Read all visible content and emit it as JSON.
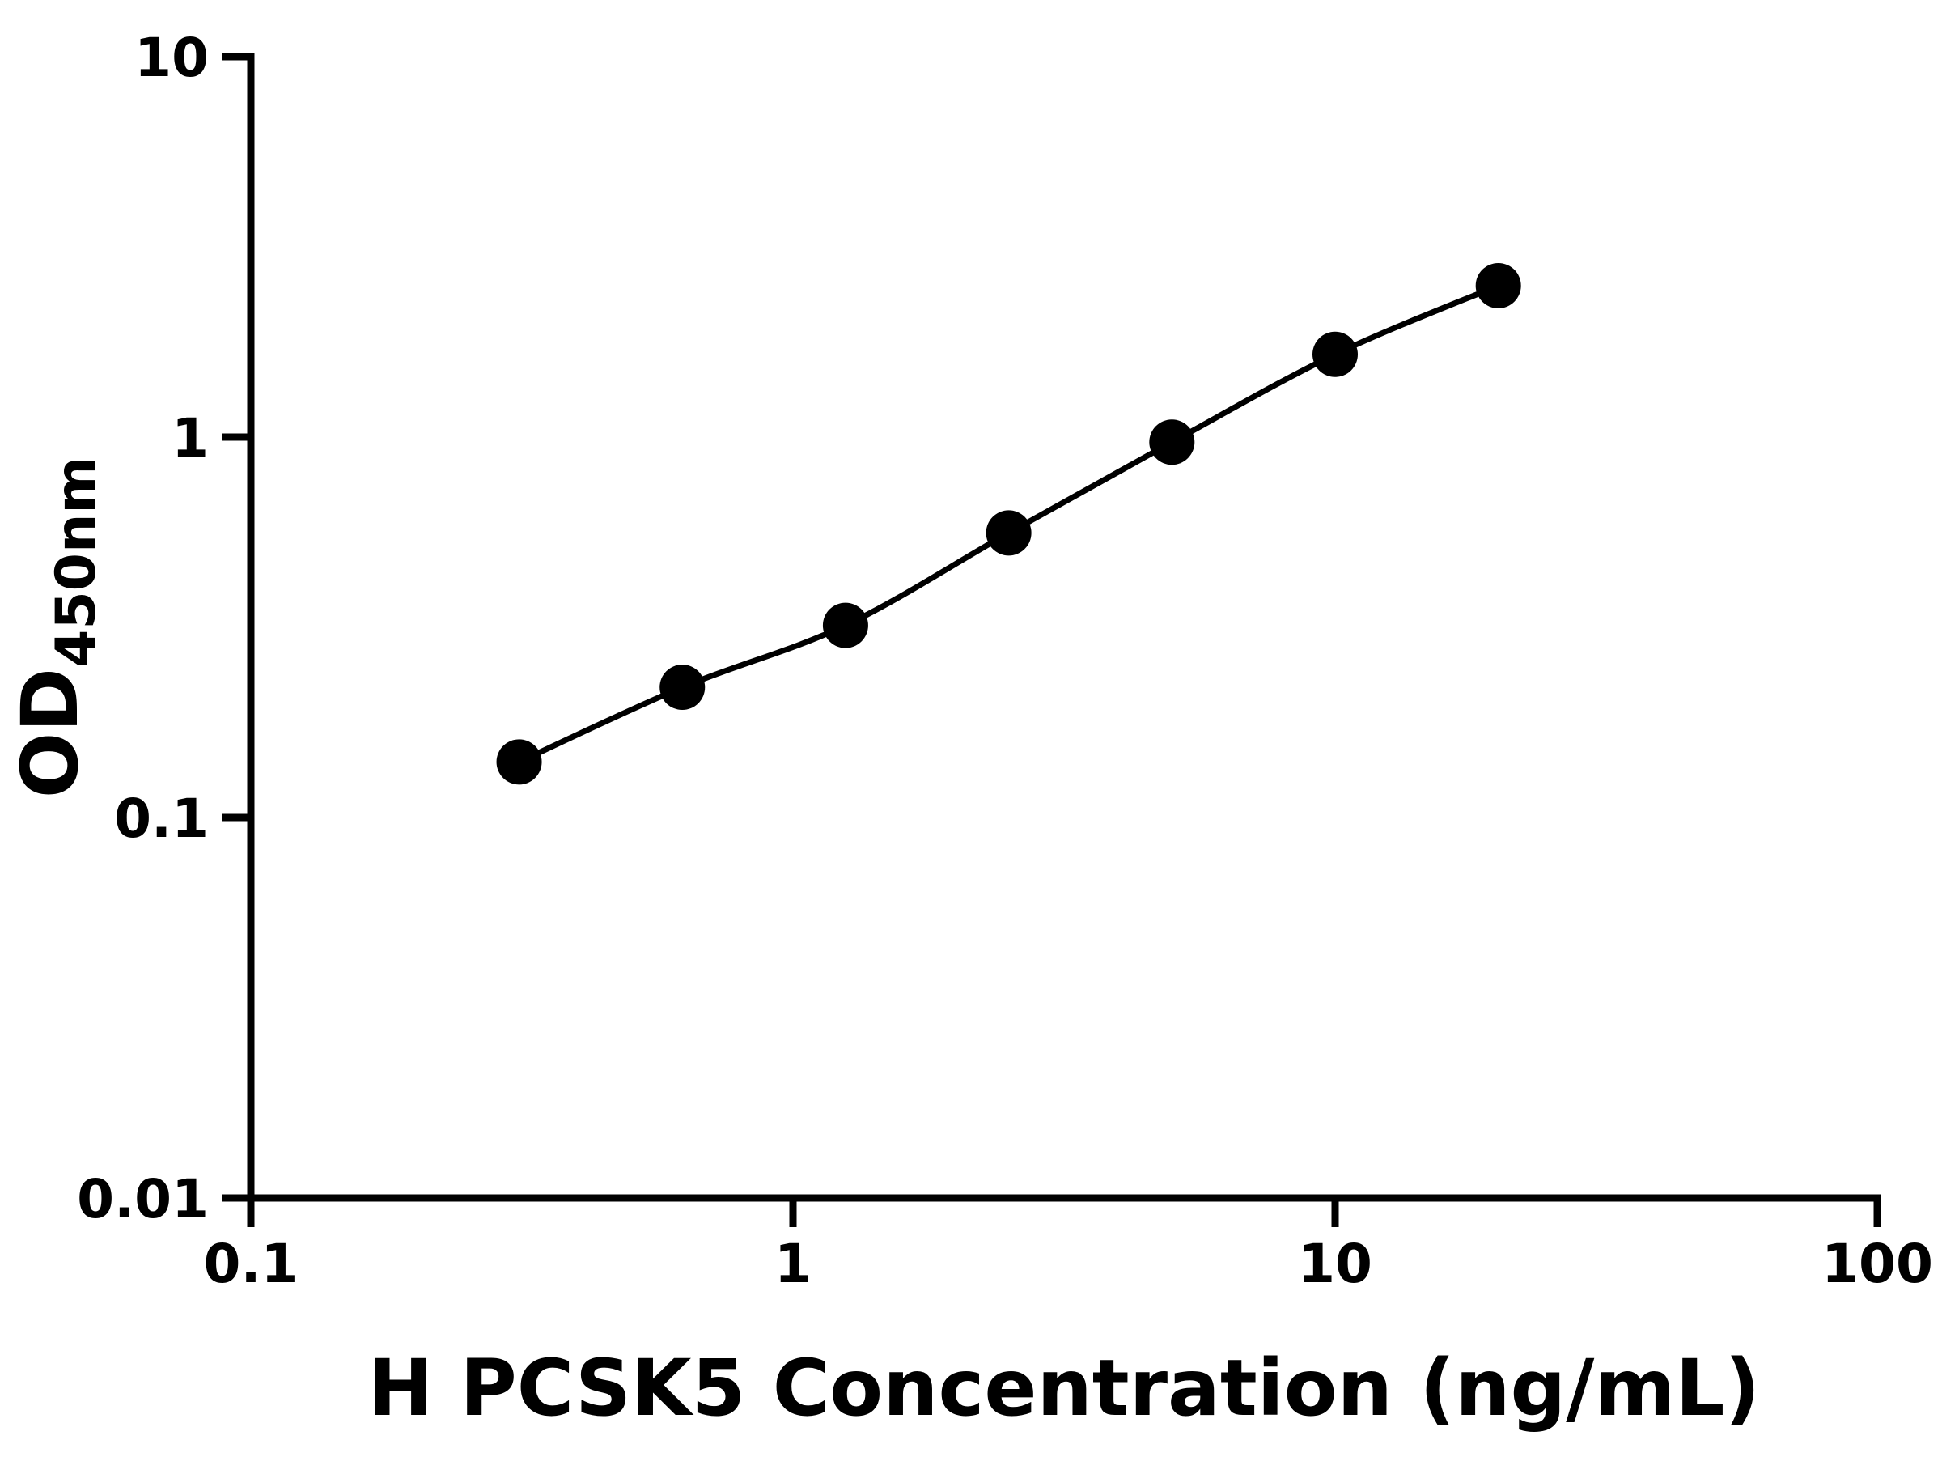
{
  "chart_data": {
    "type": "line",
    "title": "",
    "xlabel": "H PCSK5 Concentration (ng/mL)",
    "ylabel_main": "OD",
    "ylabel_sub": "450nm",
    "xscale": "log",
    "yscale": "log",
    "xlim": [
      0.1,
      100
    ],
    "ylim": [
      0.01,
      10
    ],
    "x": [
      0.3125,
      0.625,
      1.25,
      2.5,
      5,
      10,
      20
    ],
    "y": [
      0.14,
      0.22,
      0.32,
      0.56,
      0.97,
      1.65,
      2.5
    ],
    "xticks": [
      {
        "value": 0.1,
        "label": "0.1"
      },
      {
        "value": 1,
        "label": "1"
      },
      {
        "value": 10,
        "label": "10"
      },
      {
        "value": 100,
        "label": "100"
      }
    ],
    "yticks": [
      {
        "value": 0.01,
        "label": "0.01"
      },
      {
        "value": 0.1,
        "label": "0.1"
      },
      {
        "value": 1,
        "label": "1"
      },
      {
        "value": 10,
        "label": "10"
      }
    ],
    "marker": "circle",
    "line_style": "smooth",
    "line_color": "#000000",
    "marker_color": "#000000",
    "axis_color": "#000000",
    "background": "#ffffff",
    "grid": false,
    "legend": "none"
  }
}
